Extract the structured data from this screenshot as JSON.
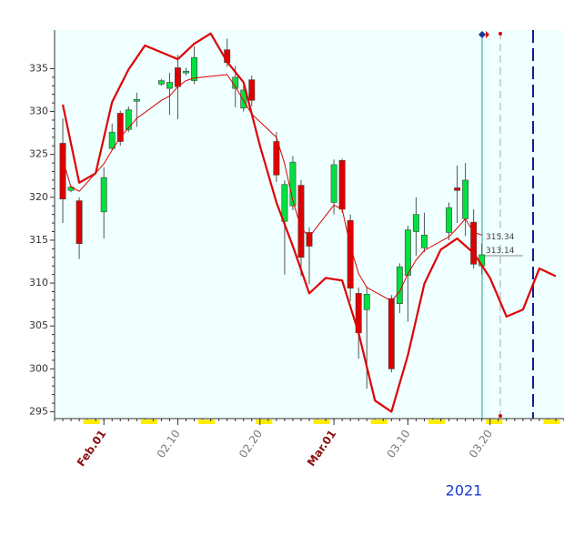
{
  "chart_data": {
    "type": "candlestick",
    "x": [
      "2021-01-27",
      "2021-01-28",
      "2021-01-29",
      "2021-02-01",
      "2021-02-02",
      "2021-02-03",
      "2021-02-04",
      "2021-02-05",
      "2021-02-08",
      "2021-02-09",
      "2021-02-10",
      "2021-02-11",
      "2021-02-12",
      "2021-02-16",
      "2021-02-17",
      "2021-02-18",
      "2021-02-19",
      "2021-02-22",
      "2021-02-23",
      "2021-02-24",
      "2021-02-25",
      "2021-02-26",
      "2021-03-01",
      "2021-03-02",
      "2021-03-03",
      "2021-03-04",
      "2021-03-05",
      "2021-03-08",
      "2021-03-09",
      "2021-03-10",
      "2021-03-11",
      "2021-03-12",
      "2021-03-15",
      "2021-03-16",
      "2021-03-17",
      "2021-03-18",
      "2021-03-19"
    ],
    "open": [
      326.3,
      320.8,
      319.6,
      318.3,
      325.7,
      329.8,
      327.9,
      331.2,
      333.2,
      332.7,
      335.1,
      334.5,
      333.6,
      337.2,
      332.7,
      330.4,
      333.7,
      326.5,
      317.2,
      319.0,
      321.4,
      315.9,
      319.4,
      324.3,
      317.3,
      308.8,
      306.9,
      308.2,
      307.6,
      310.9,
      316.0,
      314.1,
      315.9,
      321.1,
      317.5,
      317.1,
      312.0
    ],
    "high": [
      329.2,
      321.4,
      320.0,
      323.5,
      328.6,
      330.1,
      330.6,
      332.2,
      333.8,
      334.5,
      336.6,
      335.1,
      337.6,
      338.5,
      335.3,
      333.0,
      334.2,
      327.6,
      322.0,
      324.8,
      322.0,
      316.5,
      324.4,
      324.5,
      318.0,
      309.5,
      309.6,
      308.6,
      312.3,
      316.7,
      320.0,
      318.2,
      319.4,
      323.7,
      324.0,
      318.6,
      314.6
    ],
    "low": [
      317.0,
      320.6,
      312.8,
      315.2,
      325.5,
      326.0,
      327.6,
      328.2,
      333.0,
      329.6,
      329.1,
      334.2,
      333.2,
      335.2,
      330.5,
      330.0,
      330.6,
      321.8,
      311.0,
      318.5,
      310.8,
      309.9,
      318.0,
      318.2,
      307.9,
      301.2,
      297.7,
      299.6,
      306.5,
      305.5,
      313.2,
      313.6,
      315.0,
      317.0,
      315.5,
      311.7,
      311.0
    ],
    "close": [
      319.8,
      321.2,
      314.6,
      322.3,
      327.6,
      326.5,
      330.2,
      331.4,
      333.6,
      333.4,
      332.9,
      334.7,
      336.3,
      335.7,
      334.0,
      332.5,
      331.3,
      322.6,
      321.5,
      324.1,
      313.0,
      314.3,
      323.8,
      318.6,
      309.4,
      304.2,
      308.7,
      300.0,
      311.9,
      316.2,
      318.0,
      315.6,
      318.8,
      320.8,
      322.0,
      312.2,
      313.3
    ],
    "up_color": "#00e040",
    "down_color": "#dd0000",
    "overlays": [
      {
        "color": "#e00000",
        "width": 1,
        "x": "candles",
        "values": [
          324.4,
          321.2,
          320.7,
          323.9,
          325.5,
          327.0,
          328.1,
          329.2,
          331.3,
          331.8,
          332.9,
          333.6,
          333.9,
          334.3,
          332.9,
          331.3,
          329.7,
          327.0,
          323.9,
          319.6,
          316.4,
          315.4,
          319.1,
          318.6,
          314.3,
          311.1,
          309.5,
          307.9,
          309.0,
          311.1,
          312.7,
          313.8,
          315.4,
          316.4,
          317.5,
          315.9,
          315.6
        ]
      },
      {
        "color": "#e00000",
        "width": 2.2,
        "x": [
          "2021-01-27",
          "2021-01-29",
          "2021-01-31",
          "2021-02-02",
          "2021-02-04",
          "2021-02-06",
          "2021-02-08",
          "2021-02-10",
          "2021-02-12",
          "2021-02-14",
          "2021-02-16",
          "2021-02-18",
          "2021-02-20",
          "2021-02-22",
          "2021-02-24",
          "2021-02-26",
          "2021-02-28",
          "2021-03-02",
          "2021-03-04",
          "2021-03-06",
          "2021-03-08",
          "2021-03-10",
          "2021-03-12",
          "2021-03-14",
          "2021-03-16",
          "2021-03-18",
          "2021-03-20",
          "2021-03-22",
          "2021-03-24",
          "2021-03-26",
          "2021-03-28"
        ],
        "values": [
          330.8,
          321.7,
          322.8,
          331.1,
          334.9,
          337.7,
          336.9,
          336.1,
          337.9,
          339.1,
          335.8,
          333.4,
          326.0,
          319.4,
          314.3,
          308.8,
          310.6,
          310.3,
          304.2,
          296.3,
          295.0,
          301.6,
          309.9,
          313.9,
          315.2,
          313.5,
          310.6,
          306.1,
          306.9,
          311.7,
          310.8
        ]
      }
    ],
    "price_labels": [
      315.34,
      313.14
    ],
    "xlim": [
      "2021-01-26",
      "2021-03-29"
    ],
    "ylim": [
      294.2,
      339.5
    ],
    "yticks": [
      295,
      300,
      305,
      310,
      315,
      320,
      325,
      330,
      335
    ],
    "xticks": [
      {
        "value": "2021-02-01",
        "label": "Feb.01"
      },
      {
        "value": "2021-02-10",
        "label": "02.10"
      },
      {
        "value": "2021-02-20",
        "label": "02.20"
      },
      {
        "value": "2021-03-01",
        "label": "Mar.01"
      },
      {
        "value": "2021-03-10",
        "label": "03.10"
      },
      {
        "value": "2021-03-20",
        "label": "03.20"
      }
    ],
    "year_label": "2021"
  }
}
